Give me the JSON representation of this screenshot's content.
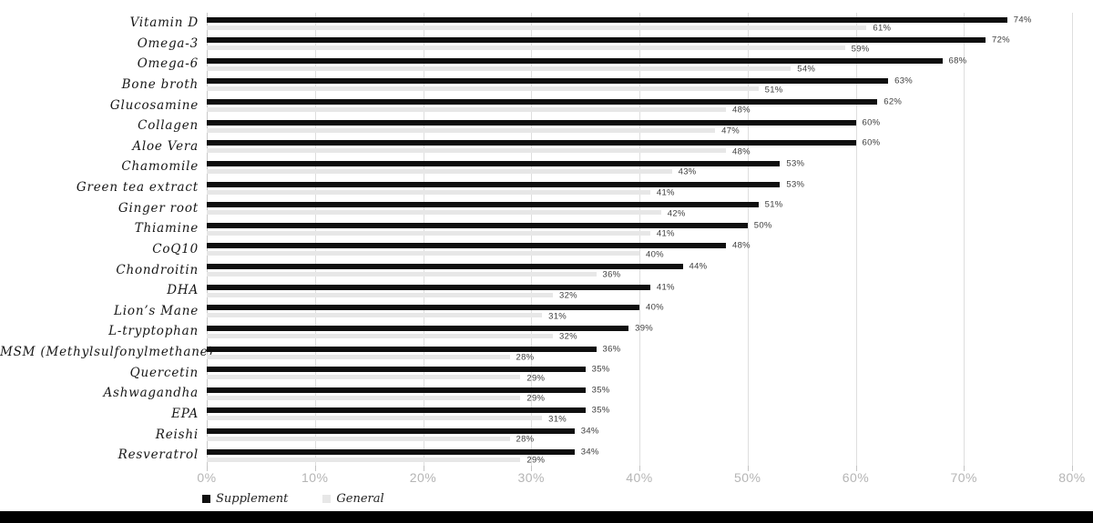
{
  "chart_data": {
    "type": "bar",
    "orientation": "horizontal",
    "title": "",
    "xlabel": "",
    "ylabel": "",
    "categories": [
      "Vitamin D",
      "Omega-3",
      "Omega-6",
      "Bone broth",
      "Glucosamine",
      "Collagen",
      "Aloe Vera",
      "Chamomile",
      "Green tea extract",
      "Ginger root",
      "Thiamine",
      "CoQ10",
      "Chondroitin",
      "DHA",
      "Lion’s Mane",
      "L-tryptophan",
      "MSM (Methylsulfonylmethane)",
      "Quercetin",
      "Ashwagandha",
      "EPA",
      "Reishi",
      "Resveratrol"
    ],
    "series": [
      {
        "name": "Supplement",
        "color": "#0f0f0f",
        "values": [
          74,
          72,
          68,
          63,
          62,
          60,
          60,
          53,
          53,
          51,
          50,
          48,
          44,
          41,
          40,
          39,
          36,
          35,
          35,
          35,
          34,
          34
        ]
      },
      {
        "name": "General",
        "color": "#e7e7e7",
        "values": [
          61,
          59,
          54,
          51,
          48,
          47,
          48,
          43,
          41,
          42,
          41,
          40,
          36,
          32,
          31,
          32,
          28,
          29,
          29,
          31,
          28,
          29
        ]
      }
    ],
    "xlim": [
      0,
      80
    ],
    "x_ticks": [
      "0%",
      "10%",
      "20%",
      "30%",
      "40%",
      "50%",
      "60%",
      "70%",
      "80%"
    ],
    "value_label_suffix": "%",
    "grid": "vertical",
    "legend_position": "bottom-left"
  },
  "colors": {
    "background": "#ffffff",
    "supplement_bar": "#0f0f0f",
    "general_bar": "#e7e7e7",
    "gridline": "#dedede",
    "axis_line": "#c9c9c9",
    "tick_label": "#b5b5b5",
    "value_label": "#3d3d3d",
    "category_label": "#161616",
    "footer_bar": "#000000"
  }
}
